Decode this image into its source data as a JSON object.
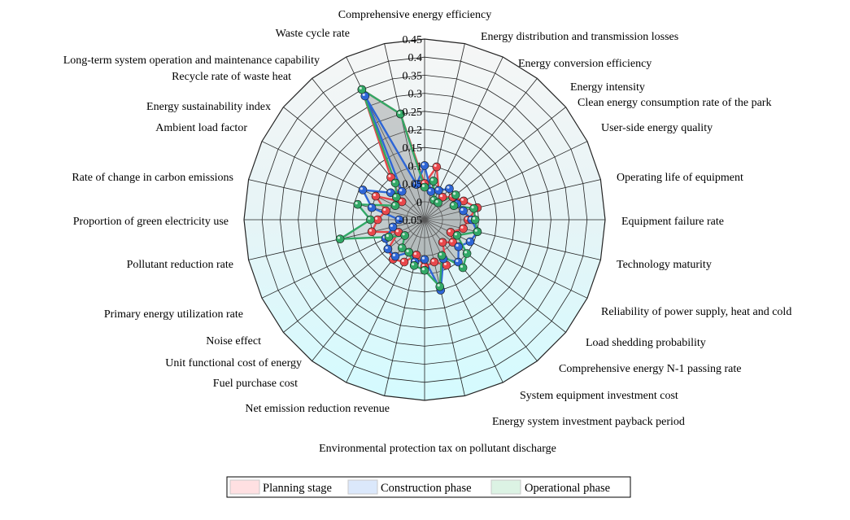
{
  "chart_data": {
    "type": "radar",
    "title": "",
    "axes": [
      "Comprehensive energy efficiency",
      "Energy distribution and transmission losses",
      "Energy conversion efficiency",
      "Energy intensity",
      "Clean energy consumption rate of the park",
      "User-side energy quality",
      "Operating life of equipment",
      "Equipment failure rate",
      "Technology maturity",
      "Reliability of power supply, heat and cold",
      "Load shedding probability",
      "Comprehensive energy N-1 passing rate",
      "System equipment investment cost",
      "Energy system investment payback period",
      "Environmental protection tax on pollutant discharge",
      "Net emission reduction revenue",
      "Fuel purchase cost",
      "Unit functional cost of energy",
      "Noise effect",
      "Primary energy utilization rate",
      "Pollutant reduction rate",
      "Proportion of green electricity use",
      "Rate of change in carbon emissions",
      "Ambient load factor",
      "Energy sustainability index",
      "Recycle rate of waste heat",
      "Long-term system operation and maintenance capability",
      "Waste cycle rate"
    ],
    "r_ticks": [
      "-0.05",
      "0",
      "0.05",
      "0.1",
      "0.15",
      "0.2",
      "0.25",
      "0.3",
      "0.35",
      "0.4",
      "0.45"
    ],
    "rlim": [
      -0.05,
      0.45
    ],
    "legend_position": "bottom",
    "series": [
      {
        "name": "Planning stage",
        "color": "#e8474b",
        "values": [
          0.05,
          0.1,
          0.04,
          0.03,
          0.05,
          0.07,
          0.1,
          0.07,
          0.06,
          0.03,
          0.05,
          0.03,
          0.09,
          0.07,
          0.08,
          0.05,
          0.08,
          0.09,
          0.08,
          0.03,
          0.1,
          0.08,
          0.06,
          0.1,
          0.03,
          0.1,
          0.35,
          0.25
        ]
      },
      {
        "name": "Construction phase",
        "color": "#2e66d6",
        "values": [
          0.1,
          0.03,
          0.04,
          0.06,
          0.06,
          0.05,
          0.06,
          0.08,
          0.1,
          0.09,
          0.07,
          0.1,
          0.07,
          0.15,
          0.06,
          0.07,
          0.05,
          0.08,
          0.08,
          0.07,
          0.04,
          0.02,
          0.1,
          0.14,
          0.07,
          0.05,
          0.33,
          0.05
        ]
      },
      {
        "name": "Operational phase",
        "color": "#32a866",
        "values": [
          0.04,
          0.06,
          0.01,
          0.01,
          0.06,
          0.04,
          0.09,
          0.09,
          0.1,
          0.05,
          0.1,
          0.12,
          0.06,
          0.14,
          0.09,
          0.08,
          0.05,
          0.05,
          0.02,
          0.06,
          0.19,
          0.1,
          0.14,
          0.04,
          0.05,
          0.08,
          0.35,
          0.25
        ]
      }
    ]
  }
}
